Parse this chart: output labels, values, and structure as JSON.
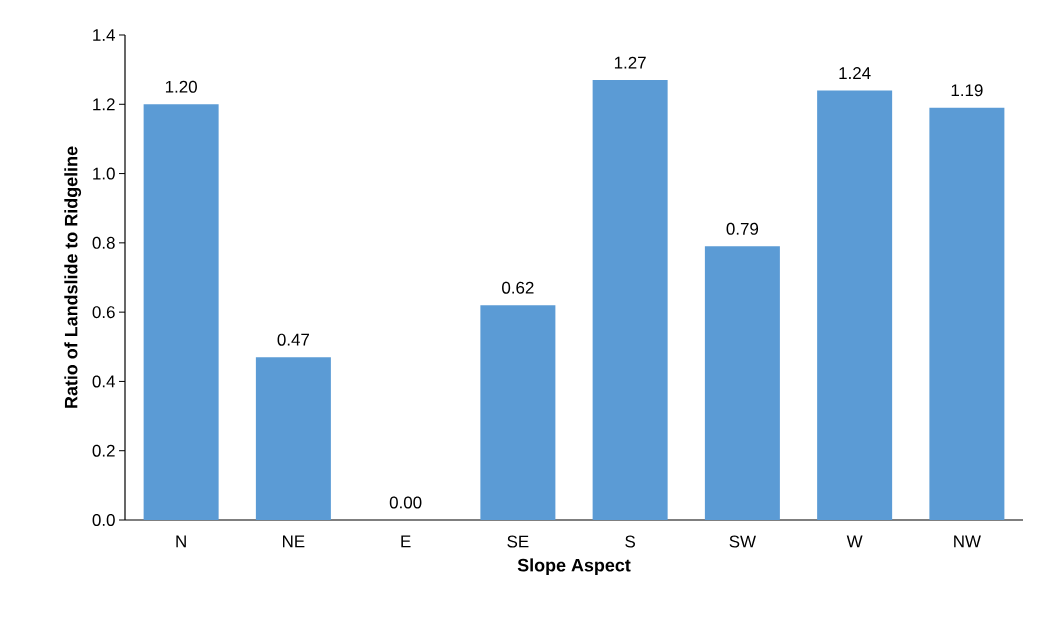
{
  "chart_data": {
    "type": "bar",
    "xlabel": "Slope Aspect",
    "ylabel": "Ratio of Landslide to Ridgeline",
    "categories": [
      "N",
      "NE",
      "E",
      "SE",
      "S",
      "SW",
      "W",
      "NW"
    ],
    "values": [
      1.2,
      0.47,
      0.0,
      0.62,
      1.27,
      0.79,
      1.24,
      1.19
    ],
    "value_labels": [
      "1.20",
      "0.47",
      "0.00",
      "0.62",
      "1.27",
      "0.79",
      "1.24",
      "1.19"
    ],
    "color": "#5b9bd5",
    "ylim": [
      0,
      1.4
    ],
    "yticks": [
      {
        "value": 0,
        "label": "0.0"
      },
      {
        "value": 0.2,
        "label": "0.2"
      },
      {
        "value": 0.4,
        "label": "0.4"
      },
      {
        "value": 0.6,
        "label": "0.6"
      },
      {
        "value": 0.8,
        "label": "0.8"
      },
      {
        "value": 1.0,
        "label": "1.0"
      },
      {
        "value": 1.2,
        "label": "1.2"
      },
      {
        "value": 1.4,
        "label": "1.4"
      }
    ],
    "grid": false
  }
}
